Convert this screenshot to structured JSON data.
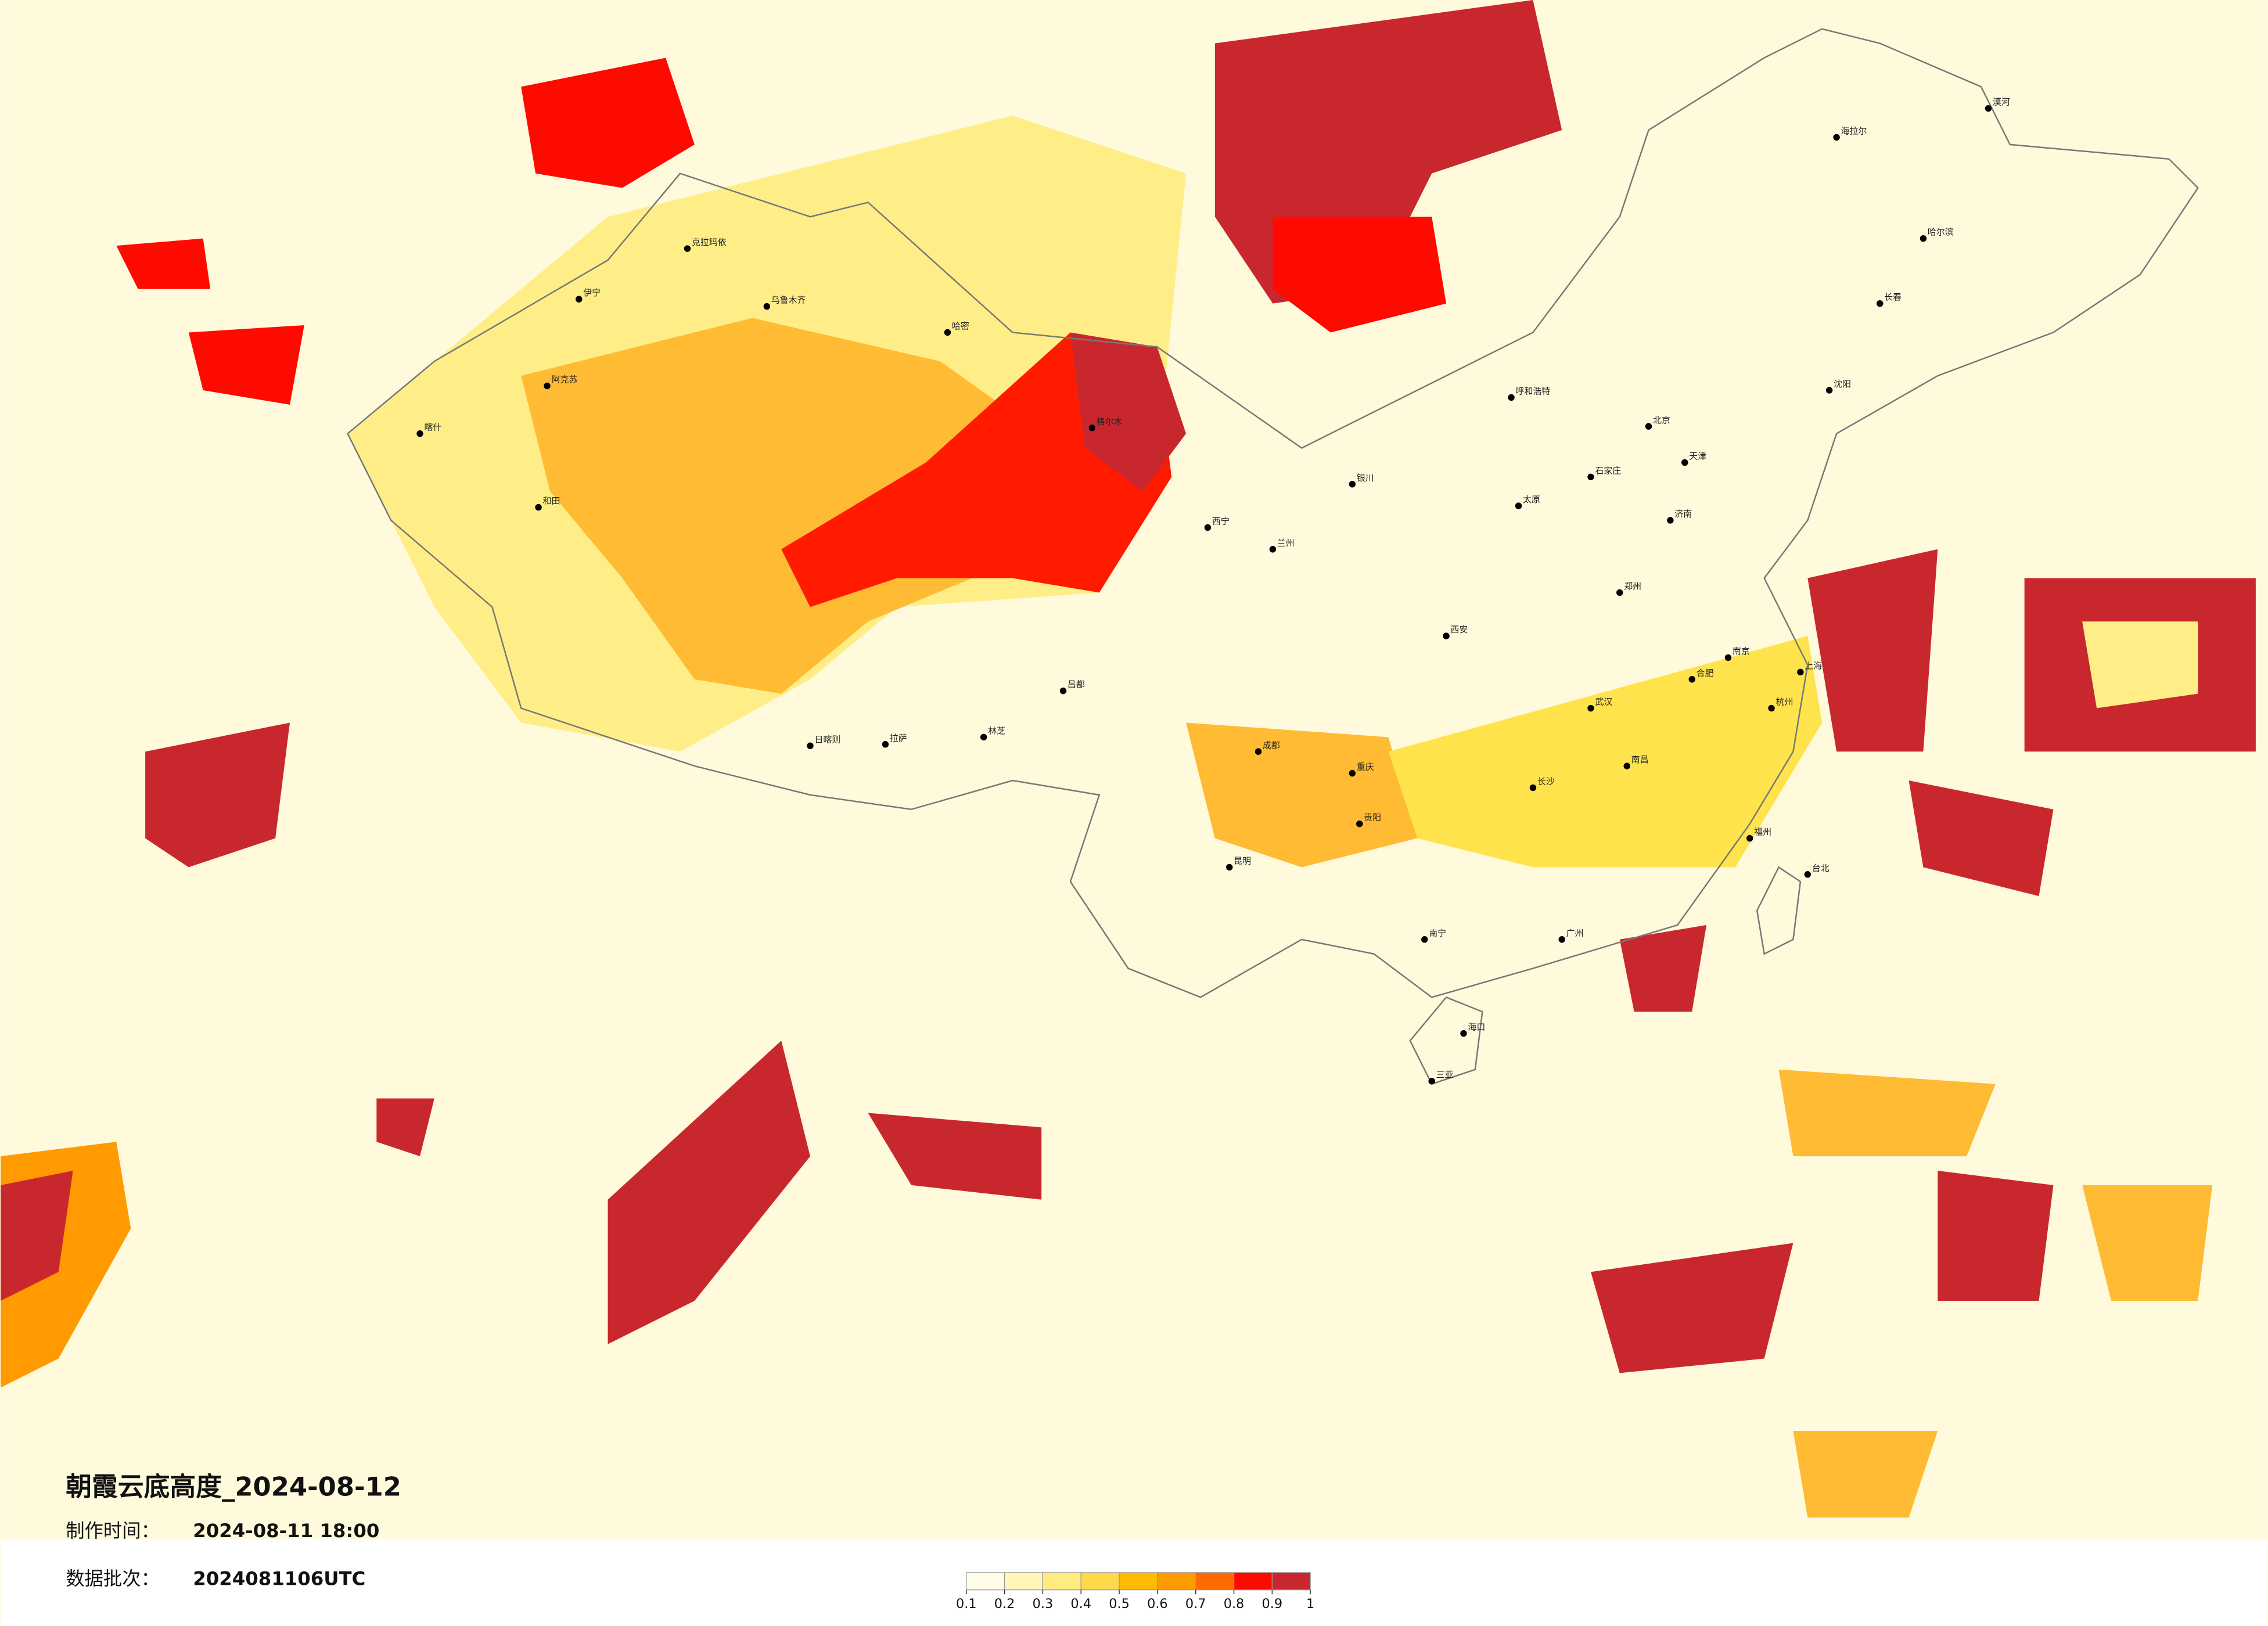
{
  "header": {
    "title": "朝霞云底高度_2024-08-12",
    "made_label": "制作时间：",
    "made_time": "2024-08-11 18:00",
    "batch_label": "数据批次：",
    "batch": "2024081106UTC"
  },
  "cities": [
    "克拉玛依",
    "伊宁",
    "乌鲁木齐",
    "阿克苏",
    "喀什",
    "和田",
    "哈密",
    "格尔木",
    "西宁",
    "兰州",
    "银川",
    "拉萨",
    "日喀则",
    "林芝",
    "昌都",
    "成都",
    "重庆",
    "贵阳",
    "昆明",
    "南宁",
    "广州",
    "海口",
    "三亚",
    "长沙",
    "武汉",
    "郑州",
    "西安",
    "太原",
    "呼和浩特",
    "北京",
    "天津",
    "石家庄",
    "济南",
    "南京",
    "合肥",
    "上海",
    "杭州",
    "南昌",
    "福州",
    "台北",
    "沈阳",
    "长春",
    "哈尔滨",
    "海拉尔",
    "漠河"
  ],
  "colorbar": {
    "ticks": [
      0.1,
      0.2,
      0.3,
      0.4,
      0.5,
      0.6,
      0.7,
      0.8,
      0.9,
      1
    ],
    "colors": [
      "#fffce8",
      "#fff6b8",
      "#ffec80",
      "#ffd94a",
      "#ffbb00",
      "#ff9a00",
      "#ff6a00",
      "#ff0a00",
      "#c8282d"
    ]
  }
}
